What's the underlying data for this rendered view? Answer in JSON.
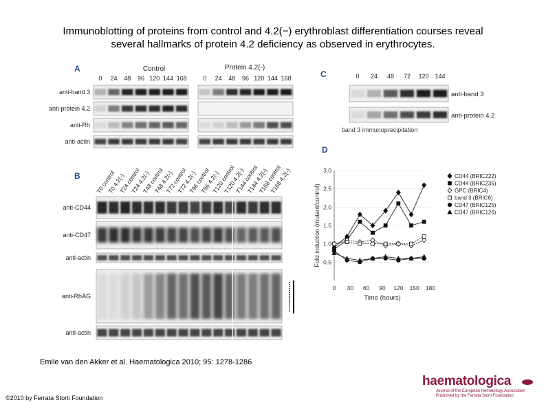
{
  "title": {
    "line1": "Immunoblotting of proteins from control and 4.2(−) erythroblast differentiation courses reveal",
    "line2": "several hallmarks of protein 4.2 deficiency as observed in erythrocytes."
  },
  "panelA": {
    "letter": "A",
    "group_control": "Control",
    "group_mutant": "Protein 4.2(-)",
    "timepoints": [
      "0",
      "24",
      "48",
      "96",
      "120",
      "144",
      "168"
    ],
    "rows": [
      "anti-band 3",
      "anti-protein 4.2",
      "anti-Rh",
      "anti-actin"
    ]
  },
  "panelB": {
    "letter": "B",
    "lanes": [
      "T0 control",
      "T0 4.2(-)",
      "T24 control",
      "T24 4.2(-)",
      "T48 control",
      "T48 4.2(-)",
      "T72 control",
      "T72 4.2(-)",
      "T96 control",
      "T96 4.2(-)",
      "T120 control",
      "T120 4.2(-)",
      "T144 control",
      "T144 4.2(-)",
      "T168 control",
      "T168 4.2(-)"
    ],
    "rows": [
      "anti-CD44",
      "anti-CD47",
      "anti-actin",
      "anti-RhAG",
      "anti-actin"
    ]
  },
  "panelC": {
    "letter": "C",
    "timepoints": [
      "0",
      "24",
      "48",
      "72",
      "120",
      "144"
    ],
    "rows": [
      "anti-band 3",
      "anti-protein 4.2"
    ],
    "caption": "band 3 immunoprecipitation"
  },
  "panelD": {
    "letter": "D",
    "legend": [
      {
        "name": "CD44 (BRIC222)",
        "symbol": "diamond-filled"
      },
      {
        "name": "CD44 (BRIC235)",
        "symbol": "square-filled"
      },
      {
        "name": "GPC (BRIC4)",
        "symbol": "diamond-open"
      },
      {
        "name": "band 3 (BRIC6)",
        "symbol": "square-open"
      },
      {
        "name": "CD47 (BRIC125)",
        "symbol": "circle-filled"
      },
      {
        "name": "CD47 (BRIC126)",
        "symbol": "triangle-filled"
      }
    ]
  },
  "chart_data": {
    "type": "line",
    "title": "",
    "xlabel": "Time (hours)",
    "ylabel": "Fold induction (mutant/control)",
    "x": [
      0,
      24,
      48,
      72,
      96,
      120,
      144,
      168
    ],
    "xticks": [
      "0",
      "30",
      "60",
      "90",
      "120",
      "150",
      "180"
    ],
    "xlim": [
      0,
      180
    ],
    "ylim": [
      0,
      3.0
    ],
    "yticks": [
      "0.5",
      "1.0",
      "1.5",
      "2.0",
      "2.5",
      "3.0"
    ],
    "grid": true,
    "series": [
      {
        "name": "CD44 (BRIC222)",
        "values": [
          0.9,
          1.2,
          1.8,
          1.5,
          1.9,
          2.4,
          1.8,
          2.6
        ]
      },
      {
        "name": "CD44 (BRIC235)",
        "values": [
          0.85,
          1.1,
          1.6,
          1.3,
          1.5,
          2.1,
          1.5,
          1.6
        ]
      },
      {
        "name": "GPC (BRIC4)",
        "values": [
          1.0,
          1.1,
          1.05,
          1.1,
          0.95,
          1.0,
          0.95,
          1.1
        ]
      },
      {
        "name": "band 3 (BRIC6)",
        "values": [
          1.0,
          1.05,
          1.0,
          1.0,
          1.0,
          1.0,
          1.0,
          1.2
        ]
      },
      {
        "name": "CD47 (BRIC125)",
        "values": [
          0.8,
          0.55,
          0.5,
          0.6,
          0.6,
          0.55,
          0.6,
          0.6
        ]
      },
      {
        "name": "CD47 (BRIC126)",
        "values": [
          0.75,
          0.6,
          0.55,
          0.6,
          0.65,
          0.6,
          0.6,
          0.65
        ]
      }
    ]
  },
  "citation": "Emile van den Akker et al. Haematologica 2010; 95: 1278-1286",
  "copyright": "©2010 by Ferrata Storti Foundation",
  "logo": {
    "name": "haematologica",
    "subtitle_line1": "Journal of the European Hematology Association",
    "subtitle_line2": "Published by the Ferrata Storti Foundation"
  }
}
